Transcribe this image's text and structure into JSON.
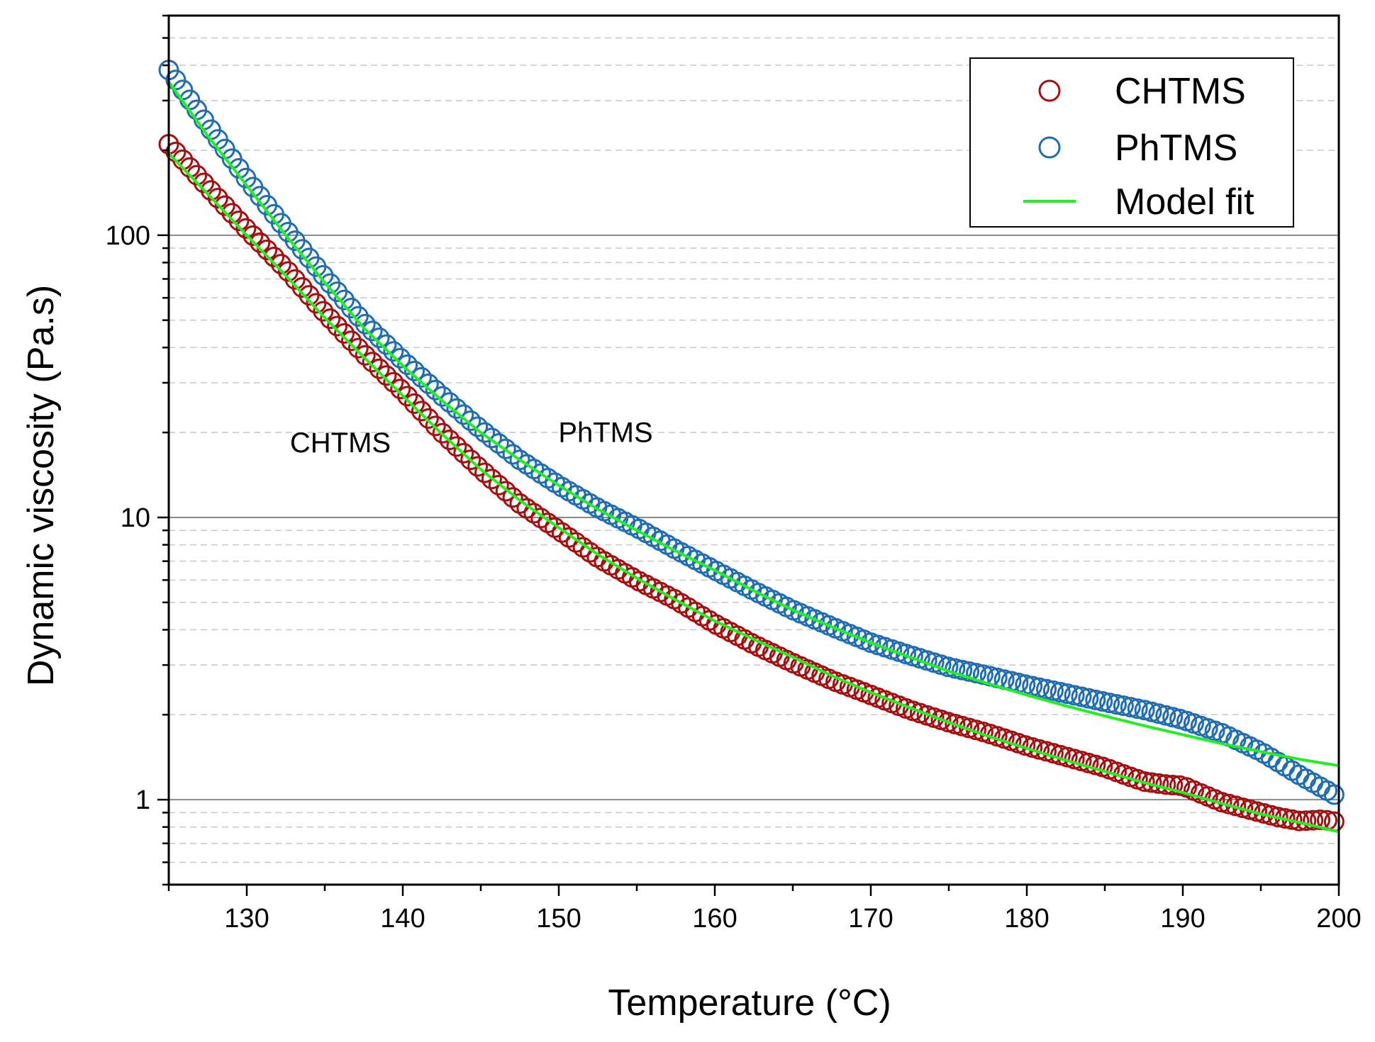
{
  "chart_data": {
    "type": "scatter",
    "title": "",
    "xlabel": "Temperature (°C)",
    "ylabel": "Dynamic viscosity (Pa.s)",
    "xlim": [
      125,
      200
    ],
    "ylim": [
      0.5,
      600
    ],
    "yscale": "log",
    "xticks": [
      130,
      140,
      150,
      160,
      170,
      180,
      190,
      200
    ],
    "xtick_labels": [
      "130",
      "140",
      "150",
      "160",
      "170",
      "180",
      "190",
      "200"
    ],
    "yticks": [
      1,
      10,
      100
    ],
    "ytick_labels": [
      "1",
      "10",
      "100"
    ],
    "grid": "horizontal major solid, minor dashed",
    "legend": {
      "position": "top-right",
      "entries": [
        {
          "label": "CHTMS",
          "marker": "open-circle",
          "color": "#a50f0f"
        },
        {
          "label": "PhTMS",
          "marker": "open-circle",
          "color": "#1f6db5"
        },
        {
          "label": "Model fit",
          "marker": "line",
          "color": "#22ee22"
        }
      ]
    },
    "annotations": [
      {
        "text": "CHTMS",
        "x": 136,
        "y": 17
      },
      {
        "text": "PhTMS",
        "x": 153,
        "y": 18.5
      }
    ],
    "series": [
      {
        "name": "CHTMS",
        "kind": "markers",
        "color": "#a50f0f",
        "x": [
          125,
          127.5,
          130,
          132.5,
          135,
          137.5,
          140,
          142.5,
          145,
          147.5,
          150,
          152.5,
          155,
          157.5,
          160,
          162.5,
          165,
          167.5,
          170,
          172.5,
          175,
          177.5,
          180,
          182.5,
          185,
          186,
          187.5,
          189,
          190,
          191,
          192.5,
          195,
          196,
          197.5,
          199,
          200
        ],
        "y": [
          210,
          148,
          105,
          76,
          53,
          38,
          28,
          20,
          14.8,
          11.2,
          9.0,
          7.2,
          6.0,
          5.1,
          4.2,
          3.55,
          3.05,
          2.65,
          2.35,
          2.08,
          1.88,
          1.72,
          1.55,
          1.42,
          1.3,
          1.24,
          1.16,
          1.13,
          1.12,
          1.06,
          0.98,
          0.9,
          0.87,
          0.84,
          0.85,
          0.83
        ]
      },
      {
        "name": "PhTMS",
        "kind": "markers",
        "color": "#1f6db5",
        "x": [
          125,
          127.5,
          130,
          132.5,
          135,
          137.5,
          140,
          142.5,
          145,
          147.5,
          150,
          152.5,
          155,
          157.5,
          160,
          162.5,
          165,
          167.5,
          170,
          172.5,
          175,
          177.5,
          180,
          182.5,
          185,
          187.5,
          190,
          192.5,
          195,
          197.5,
          200
        ],
        "y": [
          385,
          245,
          158,
          105,
          71,
          49,
          36,
          27,
          20.5,
          16,
          13,
          10.8,
          9.2,
          7.7,
          6.5,
          5.5,
          4.7,
          4.1,
          3.6,
          3.25,
          2.95,
          2.75,
          2.55,
          2.38,
          2.22,
          2.08,
          1.92,
          1.72,
          1.48,
          1.22,
          1.02
        ]
      },
      {
        "name": "Model fit (CHTMS)",
        "kind": "line",
        "color": "#22ee22",
        "x": [
          125,
          127.5,
          130,
          132.5,
          135,
          137.5,
          140,
          142.5,
          145,
          147.5,
          150,
          152.5,
          155,
          157.5,
          160,
          162.5,
          165,
          167.5,
          170,
          172.5,
          175,
          177.5,
          180,
          182.5,
          185,
          187.5,
          190,
          192.5,
          195,
          197.5,
          200
        ],
        "y": [
          195,
          140,
          100,
          72,
          51,
          37,
          27,
          19.8,
          14.8,
          11.5,
          9.2,
          7.4,
          6.1,
          5.1,
          4.3,
          3.7,
          3.2,
          2.75,
          2.4,
          2.12,
          1.88,
          1.68,
          1.52,
          1.38,
          1.26,
          1.15,
          1.06,
          0.97,
          0.89,
          0.83,
          0.77
        ]
      },
      {
        "name": "Model fit (PhTMS)",
        "kind": "line",
        "color": "#22ee22",
        "x": [
          125,
          127.5,
          130,
          132.5,
          135,
          137.5,
          140,
          142.5,
          145,
          147.5,
          150,
          152.5,
          155,
          157.5,
          160,
          162.5,
          165,
          167.5,
          170,
          172.5,
          175,
          177.5,
          180,
          182.5,
          185,
          187.5,
          190,
          192.5,
          195,
          197.5,
          200
        ],
        "y": [
          350,
          225,
          150,
          100,
          68,
          47,
          34.5,
          26,
          20,
          16,
          13,
          10.7,
          9,
          7.6,
          6.5,
          5.5,
          4.7,
          4.1,
          3.6,
          3.2,
          2.85,
          2.58,
          2.35,
          2.15,
          1.98,
          1.83,
          1.7,
          1.58,
          1.48,
          1.39,
          1.32
        ]
      }
    ]
  }
}
